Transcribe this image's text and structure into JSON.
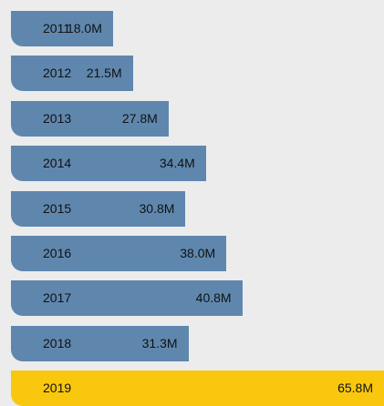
{
  "chart_data": {
    "type": "bar",
    "orientation": "horizontal",
    "title": "",
    "xlabel": "",
    "ylabel": "",
    "categories": [
      "2011",
      "2012",
      "2013",
      "2014",
      "2015",
      "2016",
      "2017",
      "2018",
      "2019"
    ],
    "values": [
      18.0,
      21.5,
      27.8,
      34.4,
      30.8,
      38.0,
      40.8,
      31.3,
      65.8
    ],
    "value_labels": [
      "18.0M",
      "21.5M",
      "27.8M",
      "34.4M",
      "30.8M",
      "38.0M",
      "40.8M",
      "31.3M",
      "65.8M"
    ],
    "xlim": [
      0,
      65.8
    ],
    "grid": false,
    "legend": "none",
    "highlight_category": "2019"
  },
  "colors": {
    "background": "#ececec",
    "bar": "#5f87ae",
    "highlight": "#f9c80e"
  }
}
